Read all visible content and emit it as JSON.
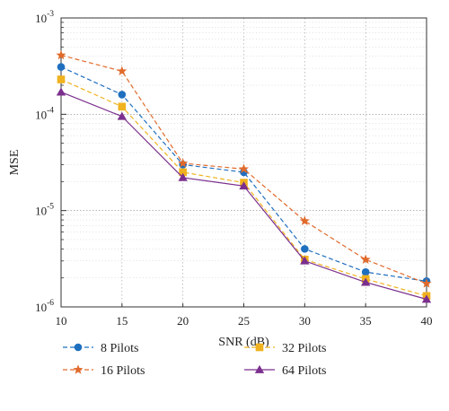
{
  "chart_data": {
    "type": "line",
    "xlabel": "SNR (dB)",
    "ylabel": "MSE",
    "x": [
      10,
      15,
      20,
      25,
      30,
      35,
      40
    ],
    "xlim": [
      10,
      40
    ],
    "xticks": [
      10,
      15,
      20,
      25,
      30,
      35,
      40
    ],
    "ylim": [
      1e-06,
      0.001
    ],
    "yscale": "log",
    "yticks": [
      {
        "value": 1e-06,
        "base": "10",
        "exp": "-6"
      },
      {
        "value": 1e-05,
        "base": "10",
        "exp": "-5"
      },
      {
        "value": 0.0001,
        "base": "10",
        "exp": "-4"
      },
      {
        "value": 0.001,
        "base": "10",
        "exp": "-3"
      }
    ],
    "grid": true,
    "legend_position": "below",
    "series": [
      {
        "name": "8 Pilots",
        "color": "#1f6fbf",
        "marker": "circle",
        "line": "dashed",
        "values": [
          0.00031,
          0.00016,
          3e-05,
          2.5e-05,
          4e-06,
          2.3e-06,
          1.85e-06
        ]
      },
      {
        "name": "16 Pilots",
        "color": "#e06a2b",
        "marker": "star",
        "line": "dashed",
        "values": [
          0.00041,
          0.00028,
          3.1e-05,
          2.7e-05,
          7.8e-06,
          3.1e-06,
          1.75e-06
        ]
      },
      {
        "name": "32 Pilots",
        "color": "#f0b21e",
        "marker": "square",
        "line": "dashed",
        "values": [
          0.00023,
          0.00012,
          2.5e-05,
          1.95e-05,
          3.1e-06,
          1.95e-06,
          1.3e-06
        ]
      },
      {
        "name": "64 Pilots",
        "color": "#7b2f8e",
        "marker": "triangle",
        "line": "solid",
        "values": [
          0.00017,
          9.5e-05,
          2.2e-05,
          1.8e-05,
          3e-06,
          1.8e-06,
          1.2e-06
        ]
      }
    ]
  }
}
